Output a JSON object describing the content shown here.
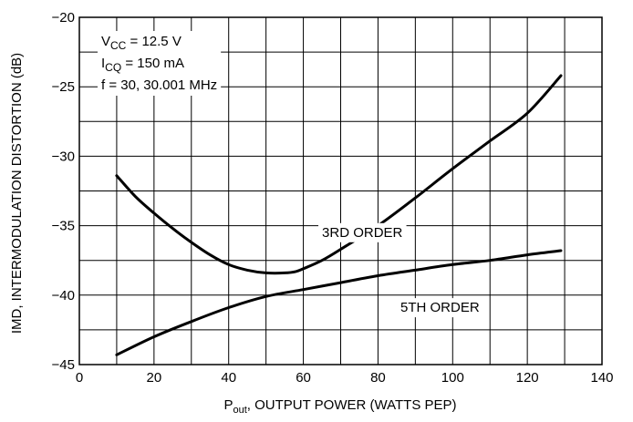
{
  "chart_data": {
    "type": "line",
    "xlabel": {
      "main": "P",
      "sub": "out",
      "rest": ", OUTPUT POWER (WATTS PEP)"
    },
    "ylabel": "IMD, INTERMODULATION DISTORTION (dB)",
    "xlim": [
      0,
      140
    ],
    "ylim": [
      -45,
      -20
    ],
    "x_ticks": [
      "0",
      "20",
      "40",
      "60",
      "80",
      "100",
      "120",
      "140"
    ],
    "y_ticks": [
      "-20",
      "-25",
      "-30",
      "-35",
      "-40",
      "-45"
    ],
    "x_grid_step": 10,
    "y_grid_step": 2.5,
    "grid": true,
    "conditions": [
      {
        "main": "V",
        "sub": "CC",
        "rest": " = 12.5 V"
      },
      {
        "main": "I",
        "sub": "CQ",
        "rest": " = 150 mA"
      },
      {
        "main": "f = 30, 30.001 MHz",
        "sub": "",
        "rest": ""
      }
    ],
    "series": [
      {
        "name": "3RD ORDER",
        "x": [
          10,
          15,
          20,
          25,
          30,
          35,
          40,
          45,
          50,
          55,
          58,
          60,
          65,
          70,
          80,
          90,
          100,
          110,
          120,
          129
        ],
        "y": [
          -31.4,
          -32.9,
          -34.1,
          -35.2,
          -36.2,
          -37.1,
          -37.8,
          -38.2,
          -38.4,
          -38.4,
          -38.3,
          -38.1,
          -37.5,
          -36.7,
          -35.0,
          -33.0,
          -30.9,
          -28.9,
          -26.9,
          -24.2
        ]
      },
      {
        "name": "5TH ORDER",
        "x": [
          10,
          20,
          30,
          40,
          50,
          60,
          70,
          80,
          90,
          100,
          110,
          120,
          129
        ],
        "y": [
          -44.3,
          -43.0,
          -41.9,
          -40.9,
          -40.1,
          -39.6,
          -39.1,
          -38.6,
          -38.2,
          -37.8,
          -37.5,
          -37.1,
          -36.8
        ]
      }
    ],
    "series_labels": [
      {
        "text": "3RD ORDER",
        "x": 65,
        "y": -35.8
      },
      {
        "text": "5TH ORDER",
        "x": 86,
        "y": -41.2
      }
    ]
  }
}
